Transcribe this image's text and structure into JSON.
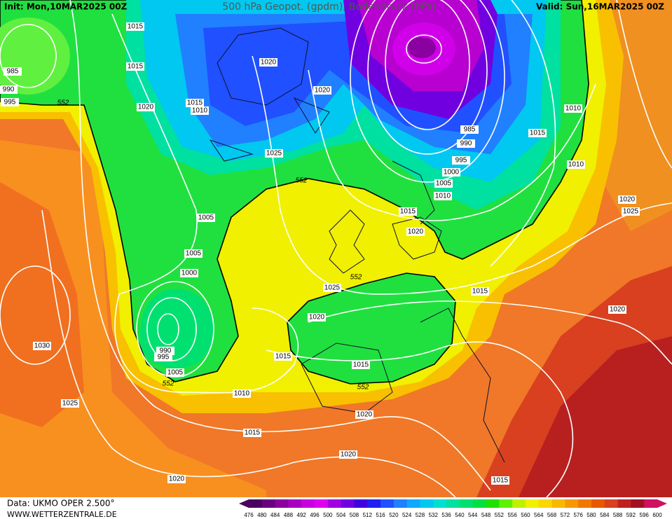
{
  "header": {
    "init": "Init: Mon,10MAR2025 00Z",
    "title": "500 hPa Geopot. (gpdm), Bodendruck (hPa)",
    "valid": "Valid: Sun,16MAR2025 00Z"
  },
  "footer": {
    "data": "Data: UKMO OPER 2.500°",
    "website": "WWW.WETTERZENTRALE.DE"
  },
  "isobars": [
    1015,
    1015,
    985,
    990,
    995,
    1020,
    1015,
    1010,
    1020,
    1020,
    1025,
    1005,
    1005,
    1000,
    990,
    995,
    1005,
    1030,
    1025,
    1020,
    1010,
    1015,
    1015,
    1020,
    1025,
    1015,
    1020,
    1020,
    1015,
    1015,
    1020,
    1015,
    1020,
    985,
    990,
    995,
    1000,
    1005,
    1010,
    1015,
    1010,
    1010,
    1020,
    1025
  ],
  "contour_552": [
    552,
    552,
    552,
    552,
    552
  ],
  "colorbar": {
    "values": [
      476,
      480,
      484,
      488,
      492,
      496,
      500,
      504,
      508,
      512,
      516,
      520,
      524,
      528,
      532,
      536,
      540,
      544,
      548,
      552,
      556,
      560,
      564,
      568,
      572,
      576,
      580,
      584,
      588,
      592,
      596,
      600
    ],
    "colors": [
      "#4b0060",
      "#6a0080",
      "#8a00a0",
      "#a800c0",
      "#c800e0",
      "#e000f0",
      "#a000e0",
      "#7000e0",
      "#4000e0",
      "#2020f0",
      "#2050ff",
      "#2080ff",
      "#10a8ff",
      "#00c8f0",
      "#00e0d0",
      "#00e0a0",
      "#00e070",
      "#00e040",
      "#20e000",
      "#60f000",
      "#c0f000",
      "#f0f000",
      "#f8d800",
      "#f8b800",
      "#f89800",
      "#f07800",
      "#e85800",
      "#d84020",
      "#c02020",
      "#a01020",
      "#d01060"
    ]
  }
}
